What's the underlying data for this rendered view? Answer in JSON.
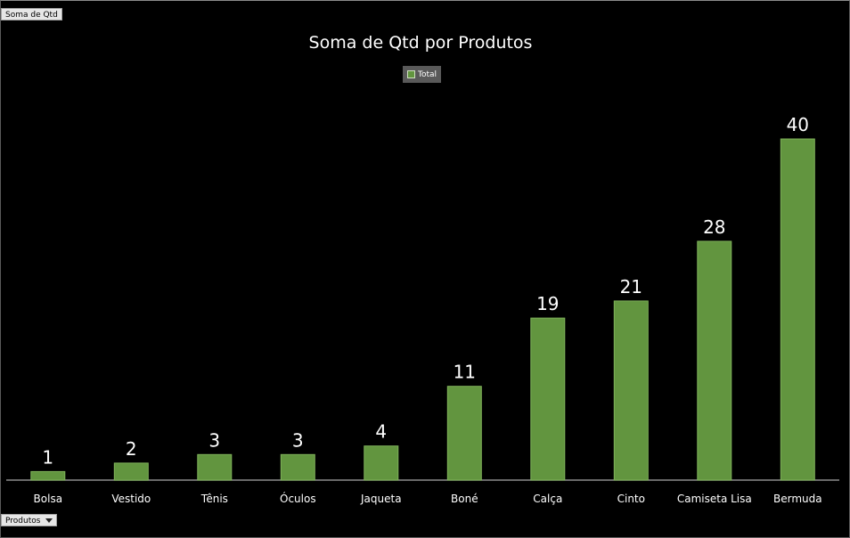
{
  "field_buttons": {
    "values_field": "Soma de Qtd",
    "axis_field": "Produtos"
  },
  "chart_data": {
    "type": "bar",
    "title": "Soma de Qtd por Produtos",
    "legend_position": "top",
    "categories": [
      "Bolsa",
      "Vestido",
      "Tênis",
      "Óculos",
      "Jaqueta",
      "Boné",
      "Calça",
      "Cinto",
      "Camiseta Lisa",
      "Bermuda"
    ],
    "series": [
      {
        "name": "Total",
        "values": [
          1,
          2,
          3,
          3,
          4,
          11,
          19,
          21,
          28,
          40
        ],
        "color": "#62953f"
      }
    ],
    "data_labels": true,
    "grid": false,
    "ylim": [
      0,
      40
    ],
    "background": "#000000"
  }
}
